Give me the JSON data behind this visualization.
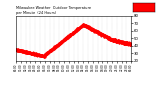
{
  "title": "Milwaukee Weather  Outdoor Temperature",
  "subtitle": "per Minute  (24 Hours)",
  "line_color": "#ff0000",
  "bg_color": "#ffffff",
  "plot_bg_color": "#ffffff",
  "marker": ".",
  "marker_size": 1.0,
  "ylim": [
    20,
    80
  ],
  "xlim": [
    0,
    1440
  ],
  "yticks": [
    20,
    30,
    40,
    50,
    60,
    70,
    80
  ],
  "legend_box_color": "#ff0000",
  "grid_color": "#aaaaaa",
  "grid_style": ":"
}
